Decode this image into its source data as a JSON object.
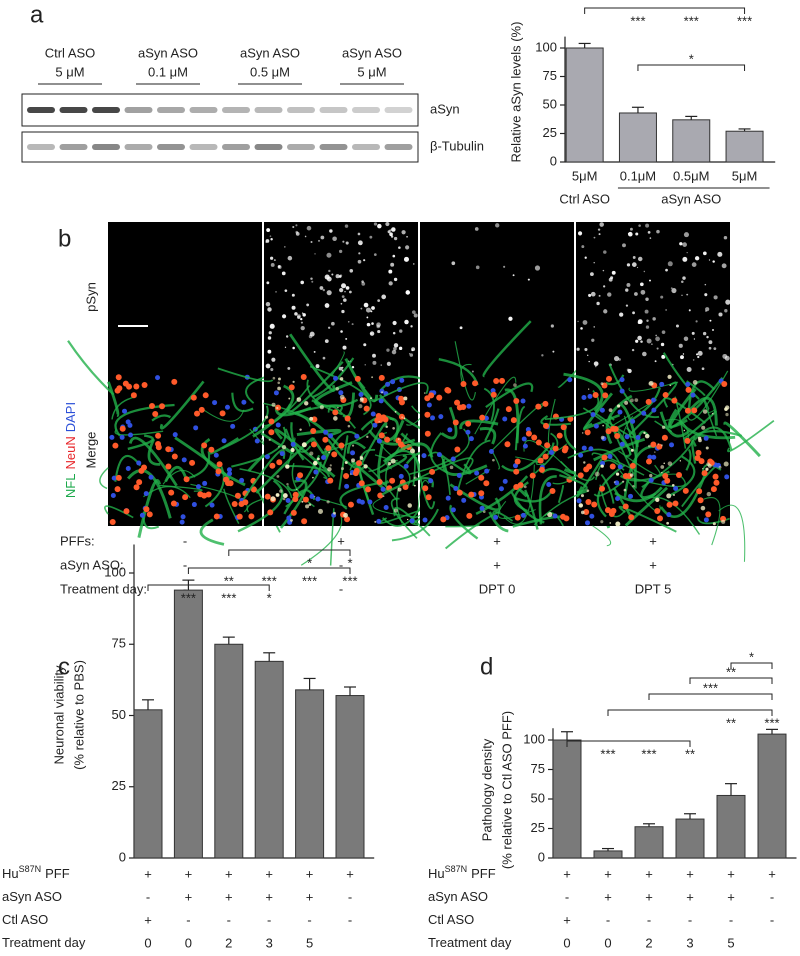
{
  "panel_labels": [
    "a",
    "b",
    "c",
    "d"
  ],
  "blot": {
    "groups": [
      {
        "name": "Ctrl ASO",
        "dose": "5 μM"
      },
      {
        "name": "aSyn ASO",
        "dose": "0.1 μM"
      },
      {
        "name": "aSyn ASO",
        "dose": "0.5 μM"
      },
      {
        "name": "aSyn ASO",
        "dose": "5 μM"
      }
    ],
    "bands": [
      "aSyn",
      "β-Tubulin"
    ]
  },
  "imaging": {
    "rows": [
      "pSyn",
      "Merge"
    ],
    "stains": [
      {
        "text": "NFL",
        "color": "#1aa84a"
      },
      {
        "text": "NeuN",
        "color": "#e8262a"
      },
      {
        "text": "DAPI",
        "color": "#2b4fd8"
      }
    ],
    "conditions": [
      {
        "label": "PFFs:",
        "values": [
          "-",
          "+",
          "+",
          "+"
        ]
      },
      {
        "label": "aSyn ASO:",
        "values": [
          "-",
          "-",
          "+",
          "+"
        ]
      },
      {
        "label": "Treatment day:",
        "values": [
          "-",
          "-",
          "DPT 0",
          "DPT 5"
        ]
      }
    ]
  },
  "chart_data": [
    {
      "type": "bar",
      "ylabel": [
        "Relative aSyn levels (%)"
      ],
      "categories": [
        "5μM",
        "0.1μM",
        "0.5μM",
        "5μM"
      ],
      "groups": [
        "Ctrl ASO",
        "aSyn ASO"
      ],
      "values": [
        100,
        43,
        37,
        27
      ],
      "errors": [
        4,
        5,
        3,
        2
      ],
      "color": "#a9a9b0",
      "ylim": [
        0,
        110
      ],
      "yticks": [
        0,
        25,
        50,
        75,
        100
      ],
      "significance": [
        {
          "labels": [
            null,
            "***",
            "***",
            "***"
          ]
        },
        {
          "label": "*"
        }
      ]
    },
    {
      "type": "bar",
      "ylabel": [
        "Neuronal viability",
        "(% relative to PBS)"
      ],
      "values": [
        52,
        94,
        75,
        69,
        59,
        57
      ],
      "errors": [
        3.5,
        3.5,
        2.5,
        3,
        4,
        3
      ],
      "color": "#7a7a7a",
      "ylim": [
        0,
        110
      ],
      "yticks": [
        0,
        25,
        50,
        75,
        100
      ],
      "treatments": [
        {
          "label": "Hu",
          "superscript": "S87N",
          "suffix": "PFF",
          "values": [
            "+",
            "+",
            "+",
            "+",
            "+",
            "+"
          ]
        },
        {
          "label": "aSyn ASO",
          "values": [
            "-",
            "+",
            "+",
            "+",
            "+",
            "-"
          ]
        },
        {
          "label": "Ctl ASO",
          "values": [
            "+",
            "-",
            "-",
            "-",
            "-",
            "-"
          ]
        },
        {
          "label": "Treatment day",
          "values": [
            "0",
            "0",
            "2",
            "3",
            "5",
            null
          ]
        }
      ],
      "significance": [
        {
          "labels": [
            null,
            "***",
            "***",
            "*",
            null,
            null
          ]
        },
        {
          "labels": [
            null,
            null,
            "**",
            "***",
            "***",
            "***"
          ]
        },
        {
          "labels": [
            null,
            null,
            null,
            null,
            "*",
            "*"
          ]
        }
      ]
    },
    {
      "type": "bar",
      "ylabel": [
        "Pathology density",
        "(% relative to Ctl ASO PFF)"
      ],
      "values": [
        100,
        6,
        26.5,
        33,
        53,
        105
      ],
      "errors": [
        7,
        2,
        2.5,
        4.5,
        10,
        4
      ],
      "color": "#7a7a7a",
      "ylim": [
        0,
        110
      ],
      "yticks": [
        0,
        25,
        50,
        75,
        100
      ],
      "treatments": [
        {
          "label": "Hu",
          "superscript": "S87N",
          "suffix": "PFF",
          "values": [
            "+",
            "+",
            "+",
            "+",
            "+",
            "+"
          ]
        },
        {
          "label": "aSyn ASO",
          "values": [
            "-",
            "+",
            "+",
            "+",
            "+",
            "-"
          ]
        },
        {
          "label": "Ctl ASO",
          "values": [
            "+",
            "-",
            "-",
            "-",
            "-",
            "-"
          ]
        },
        {
          "label": "Treatment day",
          "values": [
            "0",
            "0",
            "2",
            "3",
            "5",
            null
          ]
        }
      ],
      "significance": [
        {
          "labels": [
            null,
            "***",
            "***",
            "**",
            null,
            null
          ]
        },
        {
          "labels": [
            null,
            null,
            null,
            null,
            "**",
            "***"
          ]
        },
        {
          "label": "***"
        },
        {
          "label": "**"
        },
        {
          "label": "*"
        }
      ]
    }
  ]
}
